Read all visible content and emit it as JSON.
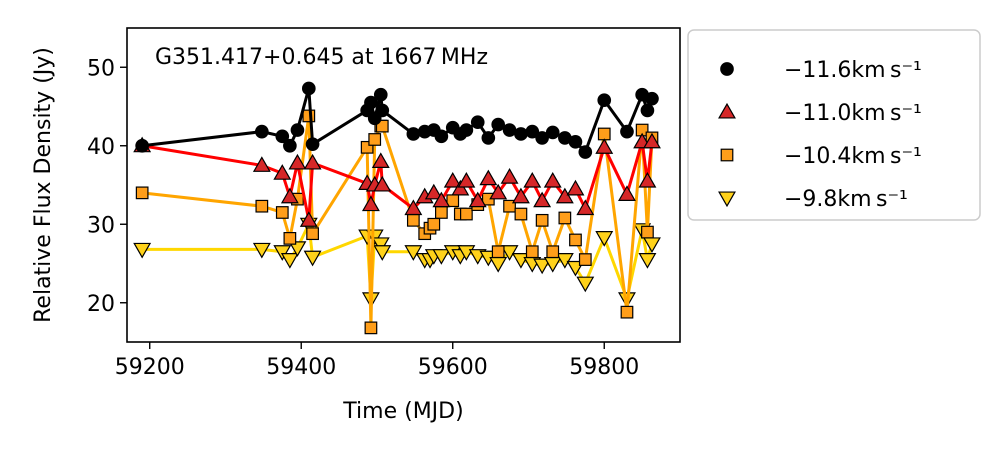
{
  "chart_data": {
    "type": "line",
    "title": "G351.417+0.645 at 1667 MHz",
    "xlabel": "Time (MJD)",
    "ylabel": "Relative Flux Density (Jy)",
    "xlim": [
      59170,
      59900
    ],
    "ylim": [
      15,
      55
    ],
    "xticks": [
      59200,
      59400,
      59600,
      59800
    ],
    "yticks": [
      20,
      30,
      40,
      50
    ],
    "grid": false,
    "legend_position": "outside-right",
    "series": [
      {
        "name": "−11.6km s⁻¹",
        "marker": "circle",
        "line_color": "#000000",
        "marker_fill": "#000000",
        "x": [
          59190,
          59348,
          59375,
          59385,
          59395,
          59410,
          59415,
          59487,
          59492,
          59497,
          59505,
          59507,
          59548,
          59563,
          59575,
          59585,
          59600,
          59610,
          59618,
          59633,
          59647,
          59660,
          59675,
          59690,
          59705,
          59718,
          59732,
          59748,
          59762,
          59775,
          59800,
          59830,
          59850,
          59857,
          59863
        ],
        "y": [
          40.0,
          41.8,
          41.2,
          40.0,
          42.0,
          47.3,
          40.2,
          44.5,
          45.5,
          43.5,
          46.5,
          44.5,
          41.5,
          41.8,
          42.0,
          41.2,
          42.3,
          41.5,
          42.0,
          43.0,
          41.0,
          42.7,
          42.0,
          41.5,
          41.8,
          41.0,
          41.7,
          41.0,
          40.5,
          39.2,
          45.8,
          41.8,
          46.5,
          44.5,
          46.0
        ]
      },
      {
        "name": "−11.0km s⁻¹",
        "marker": "triangle-up",
        "line_color": "#ff0000",
        "marker_fill": "#d62728",
        "x": [
          59190,
          59348,
          59375,
          59385,
          59395,
          59410,
          59415,
          59487,
          59492,
          59497,
          59505,
          59507,
          59548,
          59563,
          59575,
          59585,
          59600,
          59610,
          59618,
          59633,
          59647,
          59660,
          59675,
          59690,
          59705,
          59718,
          59732,
          59748,
          59762,
          59775,
          59800,
          59830,
          59850,
          59857,
          59863
        ],
        "y": [
          40.0,
          37.5,
          36.5,
          33.5,
          37.8,
          30.5,
          37.8,
          35.2,
          32.5,
          35.0,
          38.0,
          35.0,
          32.0,
          33.5,
          34.0,
          33.0,
          35.5,
          34.5,
          35.5,
          33.0,
          35.8,
          34.0,
          36.0,
          33.5,
          35.5,
          33.0,
          35.5,
          33.5,
          34.5,
          32.0,
          39.8,
          33.8,
          40.5,
          35.5,
          40.5
        ]
      },
      {
        "name": "−10.4km s⁻¹",
        "marker": "square",
        "line_color": "#ffa500",
        "marker_fill": "#ff9e1a",
        "x": [
          59190,
          59348,
          59375,
          59385,
          59395,
          59410,
          59415,
          59487,
          59492,
          59497,
          59505,
          59507,
          59548,
          59563,
          59570,
          59575,
          59585,
          59600,
          59610,
          59618,
          59633,
          59647,
          59660,
          59675,
          59690,
          59705,
          59718,
          59732,
          59748,
          59762,
          59775,
          59800,
          59830,
          59850,
          59857,
          59863
        ],
        "y": [
          34.0,
          32.3,
          31.5,
          28.2,
          33.2,
          43.8,
          28.8,
          39.8,
          16.8,
          40.8,
          42.5,
          42.5,
          30.5,
          28.8,
          29.5,
          30.0,
          31.5,
          33.0,
          31.3,
          31.3,
          32.5,
          33.2,
          26.5,
          32.3,
          31.3,
          26.5,
          30.5,
          26.5,
          30.8,
          28.0,
          25.5,
          41.5,
          18.8,
          42.0,
          29.0,
          41.0
        ]
      },
      {
        "name": "−9.8km s⁻¹",
        "marker": "triangle-down",
        "line_color": "#ffd700",
        "marker_fill": "#ffd21a",
        "x": [
          59190,
          59348,
          59375,
          59385,
          59395,
          59410,
          59415,
          59487,
          59492,
          59497,
          59505,
          59507,
          59548,
          59563,
          59570,
          59575,
          59585,
          59600,
          59610,
          59618,
          59633,
          59647,
          59660,
          59675,
          59690,
          59705,
          59718,
          59732,
          59748,
          59762,
          59775,
          59800,
          59830,
          59850,
          59857,
          59863
        ],
        "y": [
          26.8,
          26.8,
          26.5,
          25.5,
          27.0,
          30.0,
          25.8,
          28.5,
          20.5,
          28.5,
          27.5,
          26.5,
          26.5,
          25.5,
          25.5,
          26.0,
          26.0,
          26.5,
          26.0,
          26.5,
          26.0,
          25.8,
          25.0,
          26.5,
          25.5,
          25.0,
          24.8,
          25.0,
          25.5,
          24.5,
          22.5,
          28.3,
          20.5,
          29.3,
          25.5,
          27.5
        ]
      }
    ]
  }
}
